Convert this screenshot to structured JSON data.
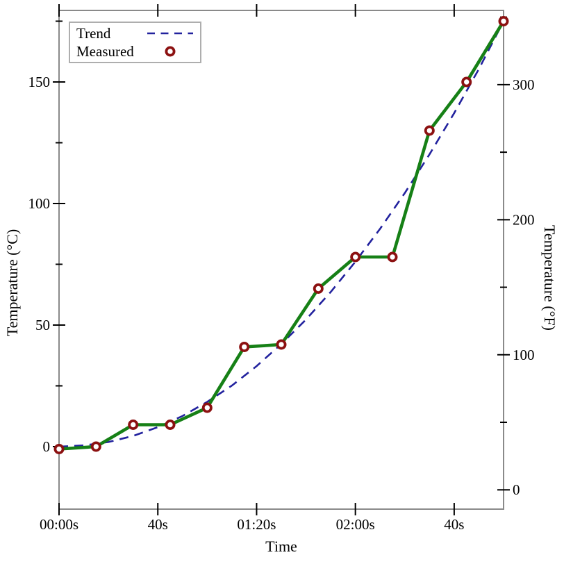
{
  "figure": {
    "xlabel": "Time",
    "ylabel_left": "Temperature (°C)",
    "ylabel_right": "Temperature (°F)"
  },
  "legend": {
    "position": "top-left",
    "entries": [
      {
        "label": "Trend",
        "sample": "dashed-line"
      },
      {
        "label": "Measured",
        "sample": "ring-marker"
      }
    ]
  },
  "chart_data": {
    "type": "line",
    "title": "",
    "xlabel": "Time",
    "ylabel_left": "Temperature (°C)",
    "ylabel_right": "Temperature (°F)",
    "xlim_seconds": [
      0,
      180
    ],
    "ylim_celsius": [
      -26,
      180
    ],
    "grid": false,
    "legend_position": "top-left",
    "x_major_ticks": [
      {
        "t": 0,
        "label": "00:00s"
      },
      {
        "t": 40,
        "label": "40s"
      },
      {
        "t": 80,
        "label": "01:20s"
      },
      {
        "t": 120,
        "label": "02:00s"
      },
      {
        "t": 160,
        "label": "40s"
      }
    ],
    "left_axis": {
      "unit": "°C",
      "major_ticks": [
        0,
        50,
        100,
        150
      ],
      "minor_ticks": [
        25,
        75,
        125,
        175
      ]
    },
    "right_axis": {
      "unit": "°F",
      "major_ticks": [
        0,
        100,
        200,
        300
      ],
      "minor_ticks": [
        50,
        150,
        250,
        350
      ]
    },
    "series": [
      {
        "name": "Trend",
        "type": "line",
        "style": "dashed",
        "x_seconds": [
          0,
          10,
          20,
          30,
          40,
          50,
          60,
          70,
          80,
          90,
          100,
          110,
          120,
          130,
          140,
          150,
          160,
          170,
          180
        ],
        "y_celsius": [
          0,
          0.5,
          1.9,
          4.4,
          8.0,
          12.6,
          18.4,
          25.1,
          33.1,
          42.2,
          52.3,
          63.6,
          76.1,
          89.6,
          104.3,
          120.2,
          137.2,
          155.3,
          175.0
        ]
      },
      {
        "name": "Measured",
        "type": "line+markers",
        "style": "solid",
        "x_seconds": [
          0,
          15,
          30,
          45,
          60,
          75,
          90,
          105,
          120,
          135,
          150,
          165,
          180
        ],
        "y_celsius": [
          -1,
          0,
          9,
          9,
          16,
          41,
          42,
          65,
          78,
          78,
          130,
          150,
          175
        ]
      }
    ],
    "colors": {
      "trend": "#22229e",
      "measured_line": "#168016",
      "measured_marker": "#8c1111",
      "marker_fill": "#ffffff",
      "frame": "#8a8a8a",
      "ticks": "#000000",
      "tick_labels": "#000000",
      "legend_border": "#aeaeae",
      "background": "#ffffff"
    }
  }
}
